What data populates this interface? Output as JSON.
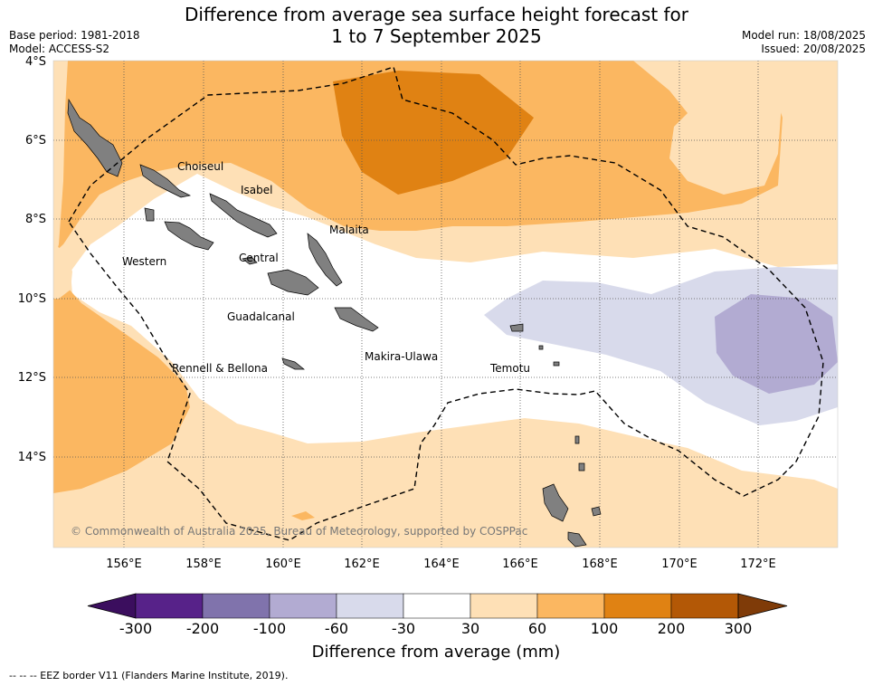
{
  "title_line1": "Difference from average sea surface height forecast for",
  "title_line2": "1 to 7 September 2025",
  "meta": {
    "base_period": "Base period: 1981-2018",
    "model": "Model: ACCESS-S2",
    "model_run": "Model run: 18/08/2025",
    "issued": "Issued: 20/08/2025"
  },
  "map": {
    "lat_labels": [
      "4°S",
      "6°S",
      "8°S",
      "10°S",
      "12°S",
      "14°S"
    ],
    "lon_labels": [
      "156°E",
      "158°E",
      "160°E",
      "162°E",
      "164°E",
      "166°E",
      "168°E",
      "170°E",
      "172°E"
    ],
    "regions": [
      "Choiseul",
      "Isabel",
      "Malaita",
      "Western",
      "Central",
      "Guadalcanal",
      "Makira-Ulawa",
      "Rennell & Bellona",
      "Temotu"
    ],
    "copyright": "© Commonwealth of Australia 2025, Bureau of Meteorology, supported by COSPPac"
  },
  "colorbar": {
    "ticks": [
      "-300",
      "-200",
      "-100",
      "-60",
      "-30",
      "30",
      "60",
      "100",
      "200",
      "300"
    ],
    "colors": [
      "#3b0e5e",
      "#572289",
      "#8073ac",
      "#b2abd2",
      "#d8daeb",
      "#ffffff",
      "#fee0b6",
      "#fbb761",
      "#e08213",
      "#b35806",
      "#7f3b08"
    ],
    "label": "Difference from average (mm)"
  },
  "legend_footer": "-- -- -- EEZ border V11 (Flanders Marine Institute, 2019)."
}
